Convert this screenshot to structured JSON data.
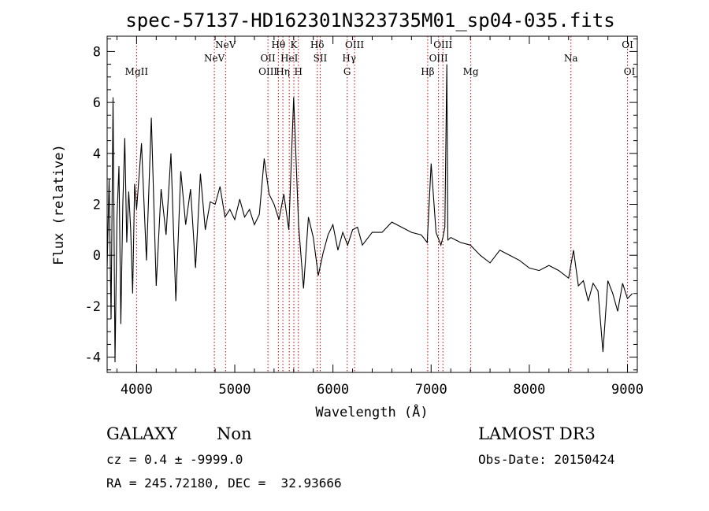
{
  "chart_data": {
    "type": "line",
    "title": "spec-57137-HD162301N323735M01_sp04-035.fits",
    "xlabel": "Wavelength (Å)",
    "ylabel": "Flux (relative)",
    "xlim": [
      3700,
      9100
    ],
    "ylim": [
      -4.6,
      8.6
    ],
    "x_ticks": [
      4000,
      5000,
      6000,
      7000,
      8000,
      9000
    ],
    "y_ticks": [
      -4,
      -2,
      0,
      2,
      4,
      6,
      8
    ],
    "grid": false,
    "series": [
      {
        "name": "spectrum",
        "x": [
          3700,
          3720,
          3740,
          3760,
          3780,
          3800,
          3820,
          3840,
          3860,
          3880,
          3900,
          3920,
          3940,
          3960,
          3980,
          4000,
          4050,
          4100,
          4150,
          4200,
          4250,
          4300,
          4350,
          4400,
          4450,
          4500,
          4550,
          4600,
          4650,
          4700,
          4750,
          4800,
          4850,
          4900,
          4950,
          5000,
          5050,
          5100,
          5150,
          5200,
          5250,
          5300,
          5350,
          5400,
          5450,
          5500,
          5550,
          5600,
          5650,
          5700,
          5750,
          5800,
          5850,
          5900,
          5950,
          6000,
          6050,
          6100,
          6150,
          6200,
          6250,
          6300,
          6400,
          6500,
          6600,
          6700,
          6800,
          6900,
          6960,
          7000,
          7050,
          7100,
          7120,
          7140,
          7160,
          7170,
          7200,
          7300,
          7400,
          7500,
          7600,
          7700,
          7800,
          7900,
          8000,
          8100,
          8200,
          8300,
          8400,
          8450,
          8500,
          8550,
          8600,
          8650,
          8700,
          8750,
          8800,
          8850,
          8900,
          8950,
          9000,
          9050
        ],
        "y": [
          -0.5,
          3.0,
          -2.5,
          6.2,
          -4.2,
          1.5,
          3.5,
          -2.7,
          2.0,
          4.6,
          0.5,
          2.5,
          1.0,
          -1.5,
          2.8,
          1.8,
          4.4,
          -0.2,
          5.4,
          -1.2,
          2.6,
          0.8,
          4.0,
          -1.8,
          3.3,
          1.2,
          2.6,
          -0.5,
          3.2,
          1.0,
          2.1,
          2.0,
          2.7,
          1.5,
          1.8,
          1.4,
          2.2,
          1.5,
          1.8,
          1.2,
          1.6,
          3.8,
          2.4,
          2.0,
          1.4,
          2.4,
          1.0,
          6.2,
          1.2,
          -1.3,
          1.5,
          0.7,
          -0.8,
          0.1,
          0.8,
          1.2,
          0.2,
          0.9,
          0.4,
          1.0,
          1.1,
          0.4,
          0.9,
          0.9,
          1.3,
          1.1,
          0.9,
          0.8,
          0.5,
          3.6,
          0.9,
          0.4,
          0.7,
          1.1,
          7.5,
          0.6,
          0.7,
          0.5,
          0.4,
          0.0,
          -0.3,
          0.2,
          0.0,
          -0.2,
          -0.5,
          -0.6,
          -0.4,
          -0.6,
          -0.9,
          0.2,
          -1.2,
          -1.0,
          -1.8,
          -1.1,
          -1.4,
          -3.8,
          -1.0,
          -1.5,
          -2.2,
          -1.1,
          -1.7,
          -1.5
        ]
      }
    ],
    "line_labels": [
      {
        "label": "MgII",
        "x": 4000,
        "row": 3
      },
      {
        "label": "NeV",
        "x": 4792,
        "row": 2
      },
      {
        "label": "NeV",
        "x": 4906,
        "row": 1
      },
      {
        "label": "OII",
        "x": 5338,
        "row": 2
      },
      {
        "label": "OIII",
        "x": 5338,
        "row": 3
      },
      {
        "label": "Hθ",
        "x": 5444,
        "row": 1
      },
      {
        "label": "Hη",
        "x": 5490,
        "row": 3
      },
      {
        "label": "HeI",
        "x": 5555,
        "row": 2
      },
      {
        "label": "K",
        "x": 5602,
        "row": 1
      },
      {
        "label": "H",
        "x": 5648,
        "row": 3
      },
      {
        "label": "Hδ",
        "x": 5840,
        "row": 1
      },
      {
        "label": "SII",
        "x": 5870,
        "row": 2
      },
      {
        "label": "OIII",
        "x": 6220,
        "row": 1
      },
      {
        "label": "Hγ",
        "x": 6165,
        "row": 2
      },
      {
        "label": "G",
        "x": 6145,
        "row": 3
      },
      {
        "label": "Hβ",
        "x": 6965,
        "row": 3
      },
      {
        "label": "OIII",
        "x": 7120,
        "row": 1
      },
      {
        "label": "OIII",
        "x": 7075,
        "row": 2
      },
      {
        "label": "Mg",
        "x": 7404,
        "row": 3
      },
      {
        "label": "Na",
        "x": 8424,
        "row": 2
      },
      {
        "label": "OI",
        "x": 9000,
        "row": 1
      },
      {
        "label": "OI",
        "x": 9020,
        "row": 3
      }
    ],
    "line_marker_x": [
      4000,
      4792,
      4906,
      5338,
      5444,
      5490,
      5555,
      5602,
      5648,
      5840,
      5870,
      6145,
      6220,
      6965,
      7075,
      7120,
      7404,
      8424,
      9000
    ]
  },
  "footer": {
    "object_class": "GALAXY",
    "subclass": "Non",
    "survey": "LAMOST DR3",
    "cz_line": "cz = 0.4 ± -9999.0",
    "obs_date": "Obs-Date: 20150424",
    "radec_line": "RA = 245.72180, DEC =  32.93666"
  },
  "colors": {
    "spectrum": "#000000",
    "marker": "#cc0000",
    "axes": "#000000"
  }
}
